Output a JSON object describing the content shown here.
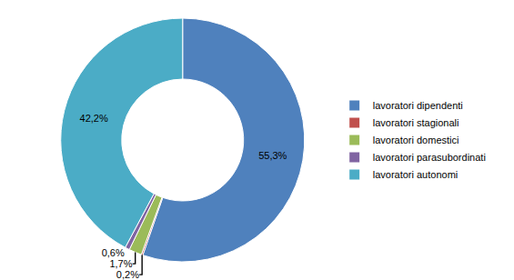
{
  "chart_data": {
    "type": "pie",
    "categories": [
      "lavoratori dipendenti",
      "lavoratori stagionali",
      "lavoratori domestici",
      "lavoratori parasubordinati",
      "lavoratori autonomi"
    ],
    "values": [
      55.3,
      0.2,
      1.7,
      0.6,
      42.2
    ],
    "value_labels": [
      "55,3%",
      "0,2%",
      "1,7%",
      "0,6%",
      "42,2%"
    ],
    "colors": [
      "#4f81bd",
      "#c0504d",
      "#9bbb59",
      "#8064a2",
      "#4bacc6"
    ],
    "data_labels": true,
    "legend": "right"
  }
}
